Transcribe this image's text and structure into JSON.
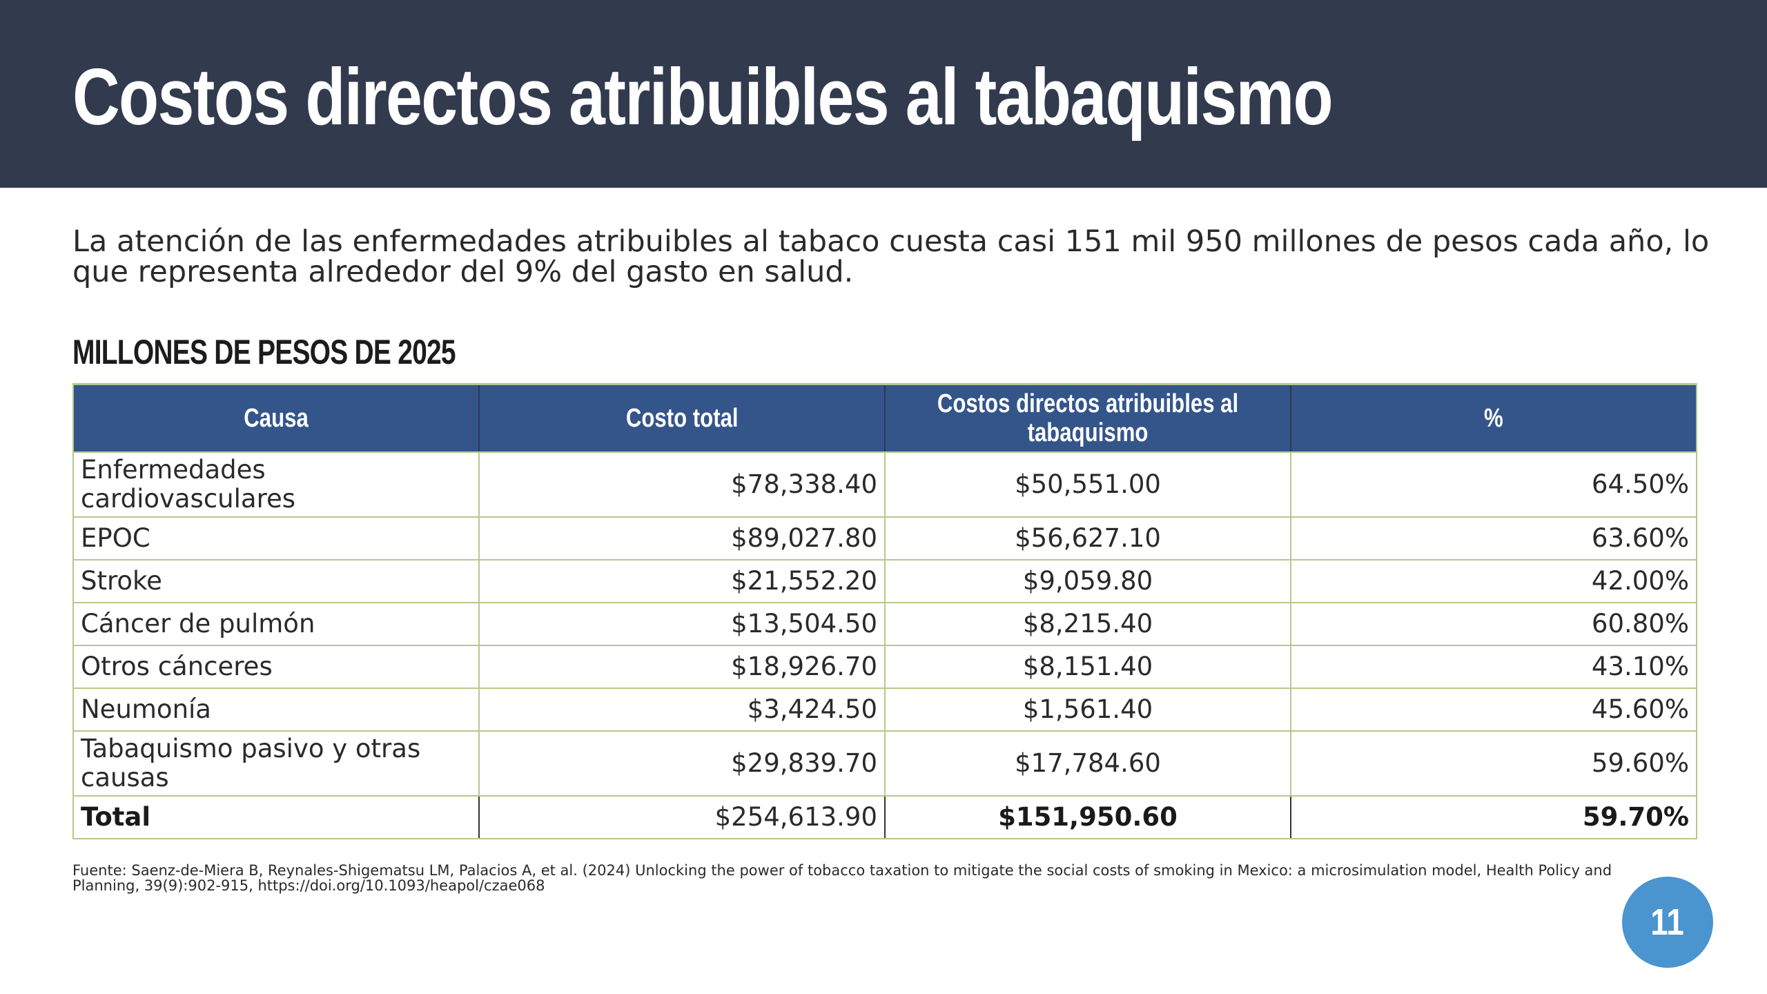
{
  "header": {
    "title": "Costos directos atribuibles al tabaquismo"
  },
  "intro": {
    "text": "La atención de las enfermedades atribuibles al tabaco cuesta casi 151 mil 950 millones de pesos cada año, lo que representa alrededor del 9% del gasto en salud."
  },
  "table": {
    "caption": "MILLONES DE PESOS DE 2025",
    "headers": [
      "Causa",
      "Costo total",
      "Costos directos atribuibles al tabaquismo",
      "%"
    ],
    "rows": [
      {
        "causa": "Enfermedades cardiovasculares",
        "costo_total": "$78,338.40",
        "costos_directos": "$50,551.00",
        "porcentaje": "64.50%"
      },
      {
        "causa": "EPOC",
        "costo_total": "$89,027.80",
        "costos_directos": "$56,627.10",
        "porcentaje": "63.60%"
      },
      {
        "causa": "Stroke",
        "costo_total": "$21,552.20",
        "costos_directos": "$9,059.80",
        "porcentaje": "42.00%"
      },
      {
        "causa": "Cáncer de pulmón",
        "costo_total": "$13,504.50",
        "costos_directos": "$8,215.40",
        "porcentaje": "60.80%"
      },
      {
        "causa": "Otros cánceres",
        "costo_total": "$18,926.70",
        "costos_directos": "$8,151.40",
        "porcentaje": "43.10%"
      },
      {
        "causa": "Neumonía",
        "costo_total": "$3,424.50",
        "costos_directos": "$1,561.40",
        "porcentaje": "45.60%"
      },
      {
        "causa": "Tabaquismo pasivo y otras causas",
        "costo_total": "$29,839.70",
        "costos_directos": "$17,784.60",
        "porcentaje": "59.60%"
      }
    ],
    "total": {
      "causa": "Total",
      "costo_total": "$254,613.90",
      "costos_directos": "$151,950.60",
      "porcentaje": "59.70%"
    }
  },
  "footer": {
    "source": "Fuente: Saenz-de-Miera B, Reynales-Shigematsu LM, Palacios A, et al. (2024) Unlocking the power of tobacco taxation to mitigate the social costs of smoking in Mexico: a microsimulation model, Health Policy and Planning, 39(9):902-915, https://doi.org/10.1093/heapol/czae068",
    "page_number": "11"
  },
  "colors": {
    "header_bg": "#323a4e",
    "table_header_bg": "#34558a",
    "table_border": "#b5c98a",
    "page_badge": "#4a94cf"
  }
}
